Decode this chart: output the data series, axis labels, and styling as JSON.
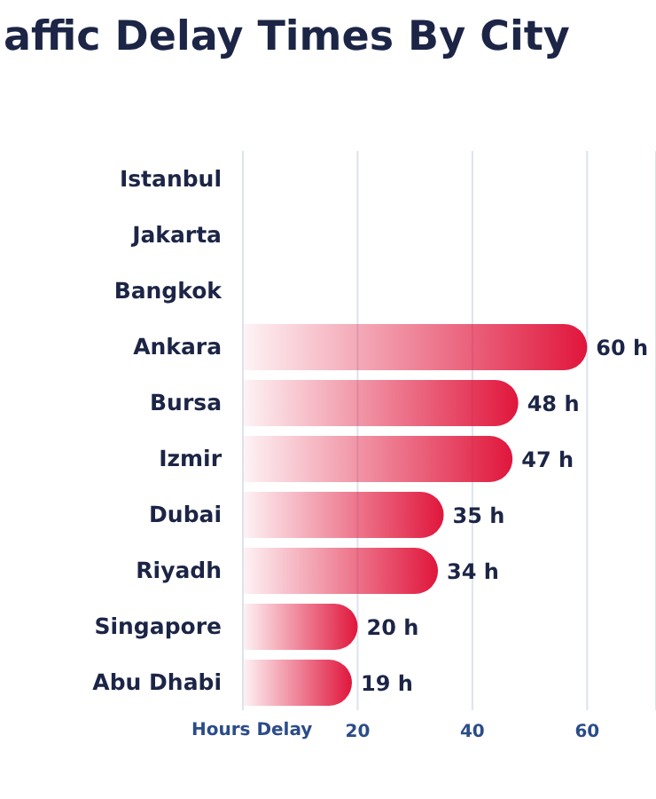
{
  "chart_data": {
    "type": "bar",
    "orientation": "horizontal",
    "title": "affic Delay Times By City",
    "xlabel": "Hours Delay",
    "categories": [
      "Istanbul",
      "Jakarta",
      "Bangkok",
      "Ankara",
      "Bursa",
      "Izmir",
      "Dubai",
      "Riyadh",
      "Singapore",
      "Abu Dhabi"
    ],
    "values": [
      null,
      null,
      null,
      60,
      48,
      47,
      35,
      34,
      20,
      19
    ],
    "value_labels": [
      null,
      null,
      null,
      "60 h",
      "48 h",
      "47 h",
      "35 h",
      "34 h",
      "20 h",
      "19 h"
    ],
    "color": "#e0163c",
    "xlim": [
      0,
      72
    ],
    "xticks": [
      20,
      40,
      60
    ],
    "grid": "x",
    "legend": false
  }
}
